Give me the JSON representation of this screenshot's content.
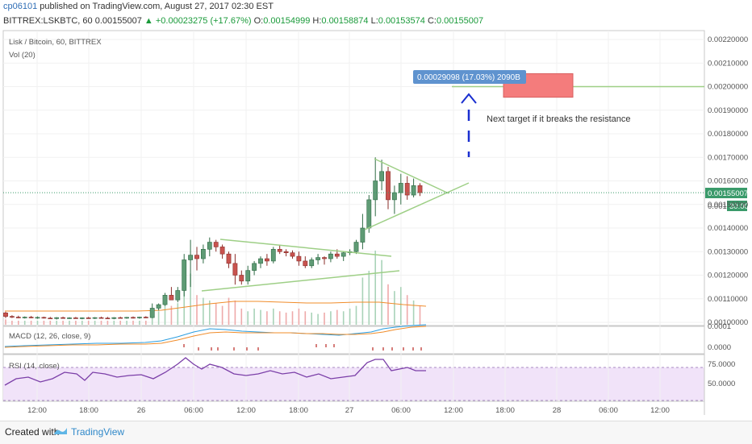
{
  "header": {
    "author": "cp06101",
    "published_text": "published on TradingView.com, August 27, 2017 02:30 EST",
    "symbol_line": "BITTREX:LSKBTC, 60",
    "price": "0.00155007",
    "change_arrow": "▲",
    "change": "+0.00023275 (+17.67%)",
    "o_label": "O:",
    "o_value": "0.00154999",
    "h_label": "H:",
    "h_value": "0.00158874",
    "l_label": "L:",
    "l_value": "0.00153574",
    "c_label": "C:",
    "c_value": "0.00155007"
  },
  "footer": {
    "created_with": "Created with",
    "brand": "TradingView"
  },
  "chart_data": {
    "type": "candlestick",
    "title": "Lisk / Bitcoin, 60, BITTREX",
    "volume_label": "Vol (20)",
    "macd_label": "MACD (12, 26, close, 9)",
    "rsi_label": "RSI (14, close)",
    "ylim": [
      0.001,
      0.00222
    ],
    "y_ticks": [
      "0.00220000",
      "0.00210000",
      "0.00200000",
      "0.00190000",
      "0.00180000",
      "0.00170000",
      "0.00160000",
      "0.00150000",
      "0.00140000",
      "0.00130000",
      "0.00120000",
      "0.00110000",
      "0.00100000"
    ],
    "macd_ticks": [
      "0.0001",
      "0.0000"
    ],
    "rsi_ticks": [
      "75.0000",
      "50.0000"
    ],
    "x_ticks": [
      "12:00",
      "18:00",
      "26",
      "06:00",
      "12:00",
      "18:00",
      "27",
      "06:00",
      "12:00",
      "18:00",
      "28",
      "06:00",
      "12:00"
    ],
    "current_price_label": "0.00155007",
    "countdown_label": "30:00",
    "partial_tick": "0.001",
    "candles": [
      {
        "o": 0.00104,
        "h": 0.001045,
        "l": 0.001018,
        "c": 0.001025
      },
      {
        "o": 0.001025,
        "h": 0.00103,
        "l": 0.001018,
        "c": 0.001022
      },
      {
        "o": 0.001022,
        "h": 0.001028,
        "l": 0.001017,
        "c": 0.00102
      },
      {
        "o": 0.00102,
        "h": 0.001025,
        "l": 0.001016,
        "c": 0.001022
      },
      {
        "o": 0.001022,
        "h": 0.001027,
        "l": 0.001017,
        "c": 0.001019
      },
      {
        "o": 0.001019,
        "h": 0.001025,
        "l": 0.001015,
        "c": 0.001021
      },
      {
        "o": 0.001021,
        "h": 0.001024,
        "l": 0.001016,
        "c": 0.001018
      },
      {
        "o": 0.001018,
        "h": 0.001023,
        "l": 0.001014,
        "c": 0.001016
      },
      {
        "o": 0.001016,
        "h": 0.001022,
        "l": 0.001012,
        "c": 0.00102
      },
      {
        "o": 0.00102,
        "h": 0.001024,
        "l": 0.001015,
        "c": 0.001017
      },
      {
        "o": 0.001017,
        "h": 0.001022,
        "l": 0.001014,
        "c": 0.001019
      },
      {
        "o": 0.001019,
        "h": 0.001023,
        "l": 0.001015,
        "c": 0.001016
      },
      {
        "o": 0.001016,
        "h": 0.001021,
        "l": 0.001013,
        "c": 0.001019
      },
      {
        "o": 0.001019,
        "h": 0.001023,
        "l": 0.001015,
        "c": 0.001017
      },
      {
        "o": 0.001017,
        "h": 0.001022,
        "l": 0.001014,
        "c": 0.00102
      },
      {
        "o": 0.00102,
        "h": 0.001024,
        "l": 0.001016,
        "c": 0.001018
      },
      {
        "o": 0.001018,
        "h": 0.001023,
        "l": 0.001014,
        "c": 0.001016
      },
      {
        "o": 0.001016,
        "h": 0.001022,
        "l": 0.001013,
        "c": 0.00102
      },
      {
        "o": 0.00102,
        "h": 0.001024,
        "l": 0.001016,
        "c": 0.001018
      },
      {
        "o": 0.001018,
        "h": 0.001023,
        "l": 0.001015,
        "c": 0.001021
      },
      {
        "o": 0.001021,
        "h": 0.001025,
        "l": 0.001016,
        "c": 0.001019
      },
      {
        "o": 0.001019,
        "h": 0.001024,
        "l": 0.001015,
        "c": 0.001022
      },
      {
        "o": 0.001022,
        "h": 0.001026,
        "l": 0.001017,
        "c": 0.00102
      },
      {
        "o": 0.00102,
        "h": 0.00108,
        "l": 0.001018,
        "c": 0.00106
      },
      {
        "o": 0.00106,
        "h": 0.00108,
        "l": 0.00105,
        "c": 0.001075
      },
      {
        "o": 0.001075,
        "h": 0.001125,
        "l": 0.00107,
        "c": 0.001115
      },
      {
        "o": 0.001115,
        "h": 0.00115,
        "l": 0.0011,
        "c": 0.001095
      },
      {
        "o": 0.001095,
        "h": 0.00115,
        "l": 0.001085,
        "c": 0.001135
      },
      {
        "o": 0.001135,
        "h": 0.00129,
        "l": 0.00111,
        "c": 0.001265
      },
      {
        "o": 0.001265,
        "h": 0.00135,
        "l": 0.00115,
        "c": 0.001285
      },
      {
        "o": 0.001285,
        "h": 0.00132,
        "l": 0.00122,
        "c": 0.00127
      },
      {
        "o": 0.00127,
        "h": 0.00133,
        "l": 0.00125,
        "c": 0.00131
      },
      {
        "o": 0.00131,
        "h": 0.00136,
        "l": 0.00128,
        "c": 0.00134
      },
      {
        "o": 0.00134,
        "h": 0.00135,
        "l": 0.0013,
        "c": 0.00132
      },
      {
        "o": 0.00132,
        "h": 0.00133,
        "l": 0.00127,
        "c": 0.00129
      },
      {
        "o": 0.00129,
        "h": 0.0013,
        "l": 0.00123,
        "c": 0.00125
      },
      {
        "o": 0.00125,
        "h": 0.00129,
        "l": 0.00116,
        "c": 0.0012
      },
      {
        "o": 0.0012,
        "h": 0.00122,
        "l": 0.00116,
        "c": 0.001175
      },
      {
        "o": 0.001175,
        "h": 0.00124,
        "l": 0.00116,
        "c": 0.00122
      },
      {
        "o": 0.00122,
        "h": 0.00126,
        "l": 0.0012,
        "c": 0.00125
      },
      {
        "o": 0.00125,
        "h": 0.00128,
        "l": 0.00123,
        "c": 0.00127
      },
      {
        "o": 0.00127,
        "h": 0.00129,
        "l": 0.00124,
        "c": 0.00126
      },
      {
        "o": 0.00126,
        "h": 0.00132,
        "l": 0.00125,
        "c": 0.00131
      },
      {
        "o": 0.00131,
        "h": 0.00133,
        "l": 0.00129,
        "c": 0.0013
      },
      {
        "o": 0.0013,
        "h": 0.00131,
        "l": 0.00128,
        "c": 0.001295
      },
      {
        "o": 0.001295,
        "h": 0.001305,
        "l": 0.00127,
        "c": 0.00128
      },
      {
        "o": 0.00128,
        "h": 0.0013,
        "l": 0.00124,
        "c": 0.00126
      },
      {
        "o": 0.00126,
        "h": 0.00128,
        "l": 0.00123,
        "c": 0.00124
      },
      {
        "o": 0.00124,
        "h": 0.001275,
        "l": 0.00123,
        "c": 0.001265
      },
      {
        "o": 0.001265,
        "h": 0.00129,
        "l": 0.001245,
        "c": 0.001275
      },
      {
        "o": 0.001275,
        "h": 0.00128,
        "l": 0.001245,
        "c": 0.00127
      },
      {
        "o": 0.00127,
        "h": 0.0013,
        "l": 0.001255,
        "c": 0.00129
      },
      {
        "o": 0.00129,
        "h": 0.00131,
        "l": 0.00127,
        "c": 0.00128
      },
      {
        "o": 0.00128,
        "h": 0.0013,
        "l": 0.00126,
        "c": 0.001295
      },
      {
        "o": 0.001295,
        "h": 0.00131,
        "l": 0.001285,
        "c": 0.0013
      },
      {
        "o": 0.0013,
        "h": 0.00135,
        "l": 0.00129,
        "c": 0.00134
      },
      {
        "o": 0.00134,
        "h": 0.00146,
        "l": 0.00131,
        "c": 0.0014
      },
      {
        "o": 0.0014,
        "h": 0.00154,
        "l": 0.00138,
        "c": 0.00152
      },
      {
        "o": 0.00152,
        "h": 0.0017,
        "l": 0.00145,
        "c": 0.0016
      },
      {
        "o": 0.0016,
        "h": 0.00169,
        "l": 0.00156,
        "c": 0.00164
      },
      {
        "o": 0.00164,
        "h": 0.00166,
        "l": 0.00148,
        "c": 0.00152
      },
      {
        "o": 0.00152,
        "h": 0.00158,
        "l": 0.00146,
        "c": 0.00155
      },
      {
        "o": 0.00155,
        "h": 0.00163,
        "l": 0.0015,
        "c": 0.00159
      },
      {
        "o": 0.00159,
        "h": 0.00162,
        "l": 0.00152,
        "c": 0.00154
      },
      {
        "o": 0.00154,
        "h": 0.00161,
        "l": 0.00153,
        "c": 0.00158
      },
      {
        "o": 0.00158,
        "h": 0.00159,
        "l": 0.001536,
        "c": 0.00155
      }
    ],
    "volume": [
      4,
      3,
      3,
      3,
      3,
      3,
      3,
      3,
      3,
      3,
      3,
      3,
      3,
      3,
      3,
      3,
      3,
      3,
      3,
      3,
      3,
      3,
      3,
      12,
      10,
      18,
      14,
      16,
      30,
      38,
      22,
      20,
      18,
      16,
      14,
      20,
      18,
      12,
      10,
      12,
      11,
      10,
      12,
      10,
      9,
      10,
      12,
      10,
      9,
      8,
      9,
      10,
      11,
      10,
      12,
      14,
      35,
      40,
      55,
      48,
      30,
      25,
      28,
      22,
      18,
      14
    ],
    "annotations": {
      "measure_label": "0.00029098 (17.03%) 2090B",
      "target_note": "Next target if it breaks the resistance",
      "target_zone": [
        0.001955,
        0.002055
      ],
      "resistance_level": 0.002
    }
  }
}
